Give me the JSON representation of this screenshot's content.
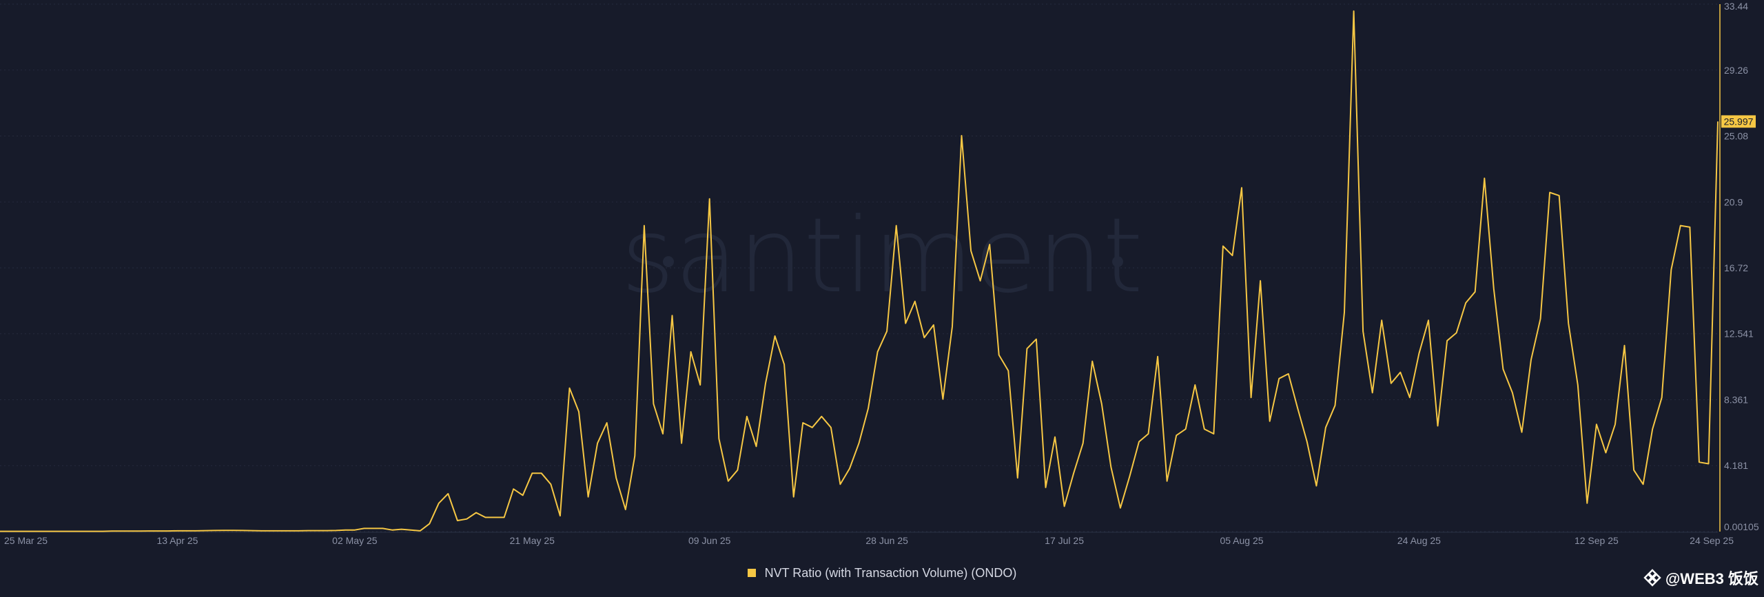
{
  "colors": {
    "background": "#171b2a",
    "line": "#f6c744",
    "grid": "#262b3d",
    "text": "#8c92a6"
  },
  "watermark": "santiment",
  "legend": {
    "label": "NVT Ratio (with Transaction Volume) (ONDO)"
  },
  "brand": {
    "text": "@WEB3 饭饭",
    "icon": "binance-diamond-icon"
  },
  "chart_data": {
    "type": "line",
    "title": "",
    "xlabel": "",
    "ylabel": "",
    "ylim": [
      0.00105,
      33.44
    ],
    "grid": true,
    "legend_position": "bottom-center",
    "y_ticks": [
      "33.44",
      "29.26",
      "25.08",
      "20.9",
      "16.72",
      "12.541",
      "8.361",
      "4.181",
      "0.00105"
    ],
    "x_ticks": [
      {
        "label": "25 Mar 25",
        "day": 0
      },
      {
        "label": "13 Apr 25",
        "day": 19
      },
      {
        "label": "02 May 25",
        "day": 38
      },
      {
        "label": "21 May 25",
        "day": 57
      },
      {
        "label": "09 Jun 25",
        "day": 76
      },
      {
        "label": "28 Jun 25",
        "day": 95
      },
      {
        "label": "17 Jul 25",
        "day": 114
      },
      {
        "label": "05 Aug 25",
        "day": 133
      },
      {
        "label": "24 Aug 25",
        "day": 152
      },
      {
        "label": "12 Sep 25",
        "day": 171
      },
      {
        "label": "24 Sep 25",
        "day": 183
      }
    ],
    "last_value_label": "25.997",
    "series": [
      {
        "name": "NVT Ratio (with Transaction Volume) (ONDO)",
        "values": [
          0.02,
          0.02,
          0.02,
          0.02,
          0.02,
          0.02,
          0.02,
          0.02,
          0.02,
          0.02,
          0.02,
          0.02,
          0.03,
          0.03,
          0.03,
          0.03,
          0.04,
          0.04,
          0.04,
          0.05,
          0.05,
          0.05,
          0.06,
          0.07,
          0.08,
          0.08,
          0.07,
          0.06,
          0.05,
          0.05,
          0.05,
          0.05,
          0.05,
          0.06,
          0.06,
          0.06,
          0.07,
          0.1,
          0.1,
          0.2,
          0.2,
          0.2,
          0.1,
          0.15,
          0.1,
          0.05,
          0.5,
          1.8,
          2.4,
          0.7,
          0.8,
          1.2,
          0.9,
          0.9,
          0.9,
          2.7,
          2.3,
          3.7,
          3.7,
          3.0,
          1.0,
          9.1,
          7.6,
          2.2,
          5.6,
          6.9,
          3.4,
          1.4,
          4.8,
          19.4,
          8.1,
          6.2,
          13.7,
          5.6,
          11.4,
          9.3,
          21.1,
          5.9,
          3.2,
          3.9,
          7.3,
          5.4,
          9.4,
          12.4,
          10.6,
          2.2,
          6.9,
          6.6,
          7.3,
          6.6,
          3.0,
          4.0,
          5.6,
          7.8,
          11.4,
          12.7,
          19.4,
          13.2,
          14.6,
          12.3,
          13.1,
          8.4,
          13.0,
          25.1,
          17.8,
          15.9,
          18.2,
          11.2,
          10.2,
          3.4,
          11.6,
          12.2,
          2.8,
          6.0,
          1.6,
          3.7,
          5.6,
          10.8,
          8.1,
          4.1,
          1.5,
          3.5,
          5.7,
          6.2,
          11.1,
          3.2,
          6.1,
          6.5,
          9.3,
          6.5,
          6.2,
          18.1,
          17.5,
          21.8,
          8.5,
          15.9,
          7.0,
          9.7,
          10.0,
          7.8,
          5.7,
          2.9,
          6.6,
          8.0,
          13.9,
          33.0,
          12.7,
          8.8,
          13.4,
          9.4,
          10.1,
          8.5,
          11.3,
          13.4,
          6.7,
          12.1,
          12.6,
          14.5,
          15.2,
          22.4,
          15.4,
          10.3,
          8.8,
          6.3,
          10.9,
          13.5,
          21.5,
          21.3,
          13.2,
          9.3,
          1.8,
          6.8,
          5.0,
          6.8,
          11.8,
          3.9,
          3.0,
          6.5,
          8.5,
          16.6,
          19.4,
          19.3,
          4.4,
          4.3,
          26.0
        ]
      }
    ]
  }
}
